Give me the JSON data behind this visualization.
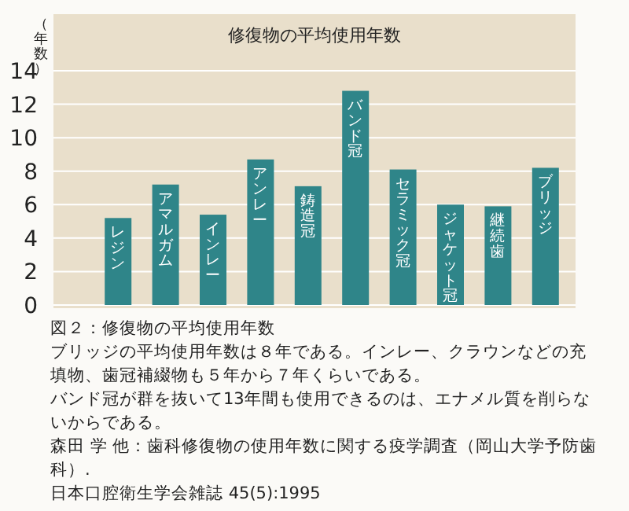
{
  "chart_data": {
    "type": "bar",
    "title": "修復物の平均使用年数",
    "ylabel": "（年数）",
    "categories": [
      "レジン",
      "アマルガム",
      "インレー",
      "アンレー",
      "鋳造冠",
      "バンド冠",
      "セラミック冠",
      "ジャケット冠",
      "継続歯",
      "ブリッジ"
    ],
    "values": [
      5.2,
      7.2,
      5.4,
      8.7,
      7.1,
      12.8,
      8.1,
      6.0,
      5.9,
      8.2
    ],
    "color": "#2f8589",
    "ylim": [
      0,
      14
    ],
    "yticks": [
      0,
      2,
      4,
      6,
      8,
      10,
      12,
      14
    ],
    "grid": "y",
    "annotations": [
      "図２：修復物の平均使用年数",
      "ブリッジの平均使用年数は８年である。インレー、クラウンなどの充填物、歯冠補綴物も５年から７年くらいである。",
      "バンド冠が群を抜いて13年間も使用できるのは、エナメル質を削らないからである。",
      "森田 学 他：歯科修復物の使用年数に関する疫学調査（岡山大学予防歯科）.",
      "日本口腔衛生学会雑誌 45(5):1995"
    ]
  }
}
